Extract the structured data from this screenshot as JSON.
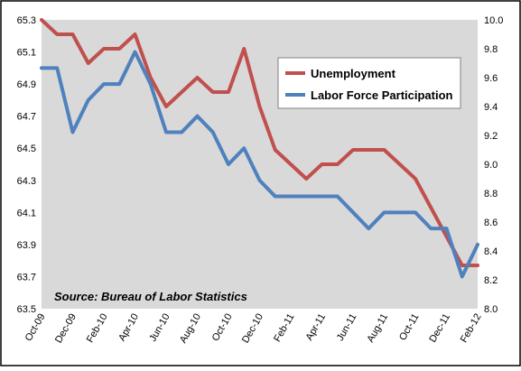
{
  "chart_data": {
    "type": "line",
    "categories": [
      "Oct-09",
      "Nov-09",
      "Dec-09",
      "Jan-10",
      "Feb-10",
      "Mar-10",
      "Apr-10",
      "May-10",
      "Jun-10",
      "Jul-10",
      "Aug-10",
      "Sep-10",
      "Oct-10",
      "Nov-10",
      "Dec-10",
      "Jan-11",
      "Feb-11",
      "Mar-11",
      "Apr-11",
      "May-11",
      "Jun-11",
      "Jul-11",
      "Aug-11",
      "Sep-11",
      "Oct-11",
      "Nov-11",
      "Dec-11",
      "Jan-12",
      "Feb-12"
    ],
    "x_tick_labels": [
      "Oct-09",
      "Dec-09",
      "Feb-10",
      "Apr-10",
      "Jun-10",
      "Aug-10",
      "Oct-10",
      "Dec-10",
      "Feb-11",
      "Apr-11",
      "Jun-11",
      "Aug-11",
      "Oct-11",
      "Dec-11",
      "Feb-12"
    ],
    "y_left": {
      "min": 63.5,
      "max": 65.3,
      "ticks": [
        "65.3",
        "65.1",
        "64.9",
        "64.7",
        "64.5",
        "64.3",
        "64.1",
        "63.9",
        "63.7",
        "63.5"
      ]
    },
    "y_right": {
      "min": 8.0,
      "max": 10.0,
      "ticks": [
        "10.0",
        "9.8",
        "9.6",
        "9.4",
        "9.2",
        "9.0",
        "8.8",
        "8.6",
        "8.4",
        "8.2",
        "8.0"
      ]
    },
    "series": [
      {
        "name": "Unemployment",
        "axis": "right",
        "color": "#C0504D",
        "values": [
          10.0,
          9.9,
          9.9,
          9.7,
          9.8,
          9.8,
          9.9,
          9.6,
          9.4,
          9.5,
          9.6,
          9.5,
          9.5,
          9.8,
          9.4,
          9.1,
          9.0,
          8.9,
          9.0,
          9.0,
          9.1,
          9.1,
          9.1,
          9.0,
          8.9,
          8.7,
          8.5,
          8.3,
          8.3
        ]
      },
      {
        "name": "Labor Force Participation",
        "axis": "left",
        "color": "#4F81BD",
        "values": [
          65.0,
          65.0,
          64.6,
          64.8,
          64.9,
          64.9,
          65.1,
          64.9,
          64.6,
          64.6,
          64.7,
          64.6,
          64.4,
          64.5,
          64.3,
          64.2,
          64.2,
          64.2,
          64.2,
          64.2,
          64.1,
          64.0,
          64.1,
          64.1,
          64.1,
          64.0,
          64.0,
          63.7,
          63.9
        ]
      }
    ],
    "legend": "top-right",
    "grid": false,
    "plot_background": "#D9D9D9",
    "annotation": "Source:  Bureau of Labor Statistics"
  }
}
